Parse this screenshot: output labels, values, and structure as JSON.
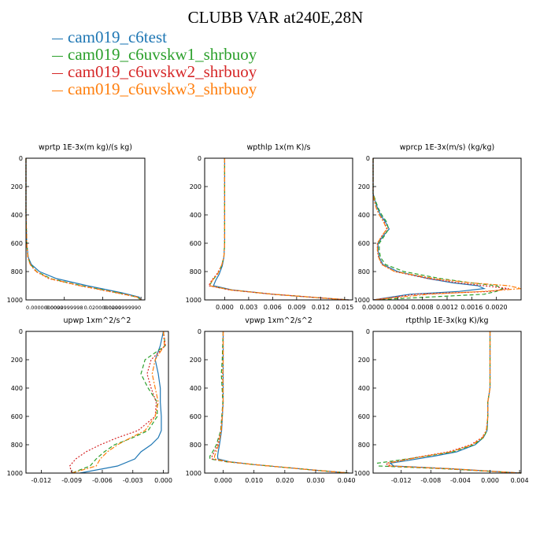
{
  "title": "CLUBB VAR at240E,28N",
  "series": [
    {
      "name": "cam019_c6test",
      "color": "#1f77b4",
      "dash": ""
    },
    {
      "name": "cam019_c6uvskw1_shrbuoy",
      "color": "#2ca02c",
      "dash": "5,3"
    },
    {
      "name": "cam019_c6uvskw2_shrbuoy",
      "color": "#d62728",
      "dash": "2,2"
    },
    {
      "name": "cam019_c6uvskw3_shrbuoy",
      "color": "#ff7f0e",
      "dash": "6,2,2,2"
    }
  ],
  "chart_data": [
    {
      "type": "line",
      "title": "wprtp  1E-3x(m kg)/(s kg)",
      "xlim": [
        0,
        0.031
      ],
      "ylim": [
        1000,
        0
      ],
      "xticks": [
        0,
        0.01,
        0.02,
        0.03
      ],
      "xtick_labels": [
        "0.0000000000",
        "0.0099999998",
        "0.0200000000",
        "0.0299999990"
      ],
      "yticks": [
        0,
        200,
        400,
        600,
        800,
        1000
      ],
      "y": [
        0,
        200,
        400,
        600,
        700,
        750,
        800,
        850,
        900,
        950,
        980,
        1000
      ],
      "series": [
        {
          "values": [
            0,
            0,
            0,
            0.0002,
            0.0006,
            0.0014,
            0.0035,
            0.008,
            0.016,
            0.025,
            0.0295,
            0.03
          ]
        },
        {
          "values": [
            0,
            0,
            0,
            0.0002,
            0.0005,
            0.0012,
            0.0028,
            0.0065,
            0.0145,
            0.024,
            0.029,
            0.03
          ]
        },
        {
          "values": [
            0,
            0,
            0,
            0.0002,
            0.0005,
            0.0011,
            0.0026,
            0.006,
            0.014,
            0.0235,
            0.029,
            0.03
          ]
        },
        {
          "values": [
            0,
            0,
            0,
            0.0002,
            0.0005,
            0.0011,
            0.0027,
            0.0062,
            0.0142,
            0.0238,
            0.029,
            0.03
          ]
        }
      ]
    },
    {
      "type": "line",
      "title": "wpthlp  1x(m K)/s",
      "xlim": [
        -0.0025,
        0.016
      ],
      "ylim": [
        1000,
        0
      ],
      "xticks": [
        0,
        0.003,
        0.006,
        0.009,
        0.012,
        0.015
      ],
      "xtick_labels": [
        "0.000",
        "0.003",
        "0.006",
        "0.009",
        "0.012",
        "0.015"
      ],
      "yticks": [
        0,
        200,
        400,
        600,
        800,
        1000
      ],
      "y": [
        0,
        200,
        400,
        600,
        700,
        760,
        820,
        860,
        900,
        930,
        960,
        990,
        1000
      ],
      "series": [
        {
          "values": [
            0,
            0,
            0,
            0,
            -0.0001,
            -0.0003,
            -0.0007,
            -0.0011,
            -0.0014,
            0.001,
            0.006,
            0.013,
            0.0155
          ]
        },
        {
          "values": [
            0,
            0,
            0,
            0,
            -0.0001,
            -0.0004,
            -0.0009,
            -0.0015,
            -0.0019,
            0.0008,
            0.006,
            0.013,
            0.0155
          ]
        },
        {
          "values": [
            0,
            0,
            0,
            0,
            -0.0001,
            -0.0004,
            -0.001,
            -0.0016,
            -0.002,
            0.0007,
            0.006,
            0.013,
            0.0155
          ]
        },
        {
          "values": [
            0,
            0,
            0,
            0,
            -0.0001,
            -0.0004,
            -0.0009,
            -0.0015,
            -0.0019,
            0.0008,
            0.006,
            0.013,
            0.0155
          ]
        }
      ]
    },
    {
      "type": "line",
      "title": "wprcp  1E-3x(m/s) (kg/kg)",
      "xlim": [
        0,
        0.0024
      ],
      "ylim": [
        1000,
        0
      ],
      "xticks": [
        0,
        0.0004,
        0.0008,
        0.0012,
        0.0016,
        0.002
      ],
      "xtick_labels": [
        "0.0000",
        "0.0004",
        "0.0008",
        "0.0012",
        "0.0016",
        "0.0020"
      ],
      "yticks": [
        0,
        200,
        400,
        600,
        800,
        1000
      ],
      "y": [
        0,
        250,
        300,
        350,
        400,
        450,
        500,
        550,
        600,
        650,
        700,
        750,
        800,
        850,
        880,
        900,
        920,
        940,
        960,
        1000
      ],
      "series": [
        {
          "values": [
            0,
            0,
            3e-05,
            7e-05,
            0.00012,
            0.0002,
            0.00026,
            0.00016,
            8e-05,
            8e-05,
            0.0001,
            0.00016,
            0.0004,
            0.0009,
            0.0013,
            0.0017,
            0.0018,
            0.0014,
            0.0006,
            0
          ]
        },
        {
          "values": [
            0,
            0,
            4e-05,
            8e-05,
            0.00014,
            0.00022,
            0.00025,
            0.00018,
            0.0001,
            0.0001,
            0.00012,
            0.0002,
            0.0005,
            0.0011,
            0.0016,
            0.002,
            0.0021,
            0.002,
            0.0018,
            0
          ]
        },
        {
          "values": [
            0,
            0,
            2e-05,
            5e-05,
            0.0001,
            0.00018,
            0.00023,
            0.00014,
            7e-05,
            7e-05,
            9e-05,
            0.00014,
            0.00035,
            0.0009,
            0.0014,
            0.0018,
            0.0022,
            0.0019,
            0.0007,
            0
          ]
        },
        {
          "values": [
            0,
            0,
            2e-05,
            5e-05,
            0.0001,
            0.00017,
            0.00022,
            0.00014,
            7e-05,
            7e-05,
            9e-05,
            0.00014,
            0.00035,
            0.001,
            0.0016,
            0.0022,
            0.0024,
            0.0018,
            0.0009,
            0
          ]
        }
      ]
    },
    {
      "type": "line",
      "title": "upwp  1xm^2/s^2",
      "xlim": [
        -0.0135,
        0.0005
      ],
      "ylim": [
        1000,
        0
      ],
      "xticks": [
        -0.012,
        -0.009,
        -0.006,
        -0.003,
        0
      ],
      "xtick_labels": [
        "-0.012",
        "-0.009",
        "-0.006",
        "-0.003",
        "0.000"
      ],
      "yticks": [
        0,
        200,
        400,
        600,
        800,
        1000
      ],
      "y": [
        0,
        100,
        200,
        300,
        400,
        500,
        600,
        700,
        750,
        800,
        850,
        900,
        950,
        1000
      ],
      "series": [
        {
          "values": [
            0,
            -0.0003,
            -0.0008,
            -0.0005,
            -0.0003,
            -0.0003,
            -0.0002,
            -0.0002,
            -0.0005,
            -0.0012,
            -0.0022,
            -0.0028,
            -0.0045,
            -0.0082
          ]
        },
        {
          "values": [
            0,
            0.0002,
            -0.0018,
            -0.0022,
            -0.0015,
            -0.0006,
            -0.0006,
            -0.0015,
            -0.003,
            -0.0048,
            -0.0058,
            -0.0066,
            -0.0072,
            -0.009
          ]
        },
        {
          "values": [
            0,
            0.0002,
            -0.0012,
            -0.0016,
            -0.0012,
            -0.0007,
            -0.0008,
            -0.0025,
            -0.0045,
            -0.0062,
            -0.0076,
            -0.0086,
            -0.0092,
            -0.009
          ]
        },
        {
          "values": [
            0,
            0.0001,
            -0.0008,
            -0.0011,
            -0.0008,
            -0.0005,
            -0.0008,
            -0.0018,
            -0.0032,
            -0.0045,
            -0.0055,
            -0.0062,
            -0.0066,
            -0.009
          ]
        }
      ]
    },
    {
      "type": "line",
      "title": "vpwp  1xm^2/s^2",
      "xlim": [
        -0.006,
        0.042
      ],
      "ylim": [
        1000,
        0
      ],
      "xticks": [
        0,
        0.01,
        0.02,
        0.03,
        0.04
      ],
      "xtick_labels": [
        "0.000",
        "0.010",
        "0.020",
        "0.030",
        "0.040"
      ],
      "yticks": [
        0,
        200,
        400,
        600,
        800,
        1000
      ],
      "y": [
        0,
        200,
        300,
        500,
        700,
        800,
        850,
        880,
        900,
        920,
        940,
        960,
        980,
        1000
      ],
      "series": [
        {
          "values": [
            0,
            0,
            0,
            0,
            -0.0005,
            -0.0012,
            -0.0016,
            -0.0018,
            -0.0017,
            0.002,
            0.01,
            0.02,
            0.03,
            0.041
          ]
        },
        {
          "values": [
            0,
            -0.0003,
            -0.0006,
            -0.0001,
            -0.0008,
            -0.0022,
            -0.0034,
            -0.0043,
            -0.0043,
            0.001,
            0.01,
            0.02,
            0.03,
            0.041
          ]
        },
        {
          "values": [
            0,
            0,
            -0.0002,
            0,
            -0.0007,
            -0.0018,
            -0.0028,
            -0.0036,
            -0.0036,
            0.0012,
            0.01,
            0.02,
            0.03,
            0.041
          ]
        },
        {
          "values": [
            0,
            0,
            -0.0001,
            0,
            -0.0006,
            -0.0015,
            -0.0022,
            -0.0028,
            -0.0028,
            0.0015,
            0.01,
            0.02,
            0.03,
            0.041
          ]
        }
      ]
    },
    {
      "type": "line",
      "title": "rtpthlp  1E-3x(kg K)/kg",
      "xlim": [
        -0.0158,
        0.0042
      ],
      "ylim": [
        1000,
        0
      ],
      "xticks": [
        -0.012,
        -0.008,
        -0.004,
        0,
        0.004
      ],
      "xtick_labels": [
        "-0.012",
        "-0.008",
        "-0.004",
        "0.000",
        "0.004"
      ],
      "yticks": [
        0,
        200,
        400,
        600,
        800,
        1000
      ],
      "y": [
        0,
        200,
        400,
        500,
        600,
        700,
        750,
        800,
        850,
        880,
        910,
        930,
        950,
        970,
        1000
      ],
      "series": [
        {
          "values": [
            0,
            0,
            0,
            -0.0003,
            -0.0003,
            -0.0004,
            -0.0009,
            -0.002,
            -0.0045,
            -0.0075,
            -0.011,
            -0.0135,
            -0.013,
            -0.005,
            0.0042
          ]
        },
        {
          "values": [
            0,
            0,
            0,
            -0.0003,
            -0.0003,
            -0.0004,
            -0.0009,
            -0.0022,
            -0.005,
            -0.0085,
            -0.0125,
            -0.0152,
            -0.015,
            -0.006,
            0.0042
          ]
        },
        {
          "values": [
            0,
            0,
            0,
            -0.0003,
            -0.0003,
            -0.0005,
            -0.0011,
            -0.0026,
            -0.0056,
            -0.009,
            -0.012,
            -0.014,
            -0.0138,
            -0.0055,
            0.0042
          ]
        },
        {
          "values": [
            0,
            0,
            0,
            -0.0003,
            -0.0003,
            -0.0005,
            -0.001,
            -0.0024,
            -0.0053,
            -0.0087,
            -0.0118,
            -0.0138,
            -0.0135,
            -0.0052,
            0.0042
          ]
        }
      ]
    }
  ]
}
